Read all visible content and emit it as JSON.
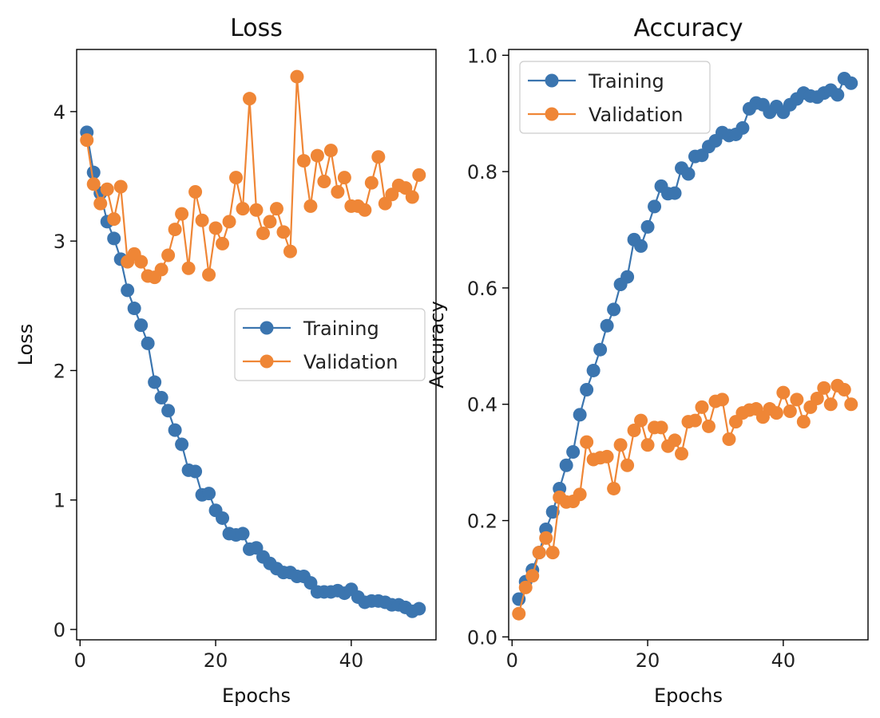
{
  "colors": {
    "training": "#3b75af",
    "validation": "#ef8636",
    "axis": "#000000",
    "legend_border": "#cccccc"
  },
  "chart_data": [
    {
      "type": "line",
      "title": "Loss",
      "xlabel": "Epochs",
      "ylabel": "Loss",
      "xlim": [
        -0.5,
        52.5
      ],
      "ylim": [
        -0.08,
        4.48
      ],
      "xticks": [
        0,
        20,
        40
      ],
      "yticks": [
        0,
        1,
        2,
        3,
        4
      ],
      "legend_position": "center-right",
      "grid": false,
      "x": [
        1,
        2,
        3,
        4,
        5,
        6,
        7,
        8,
        9,
        10,
        11,
        12,
        13,
        14,
        15,
        16,
        17,
        18,
        19,
        20,
        21,
        22,
        23,
        24,
        25,
        26,
        27,
        28,
        29,
        30,
        31,
        32,
        33,
        34,
        35,
        36,
        37,
        38,
        39,
        40,
        41,
        42,
        43,
        44,
        45,
        46,
        47,
        48,
        49,
        50
      ],
      "series": [
        {
          "name": "Training",
          "color_key": "training",
          "values": [
            3.84,
            3.53,
            3.37,
            3.15,
            3.02,
            2.86,
            2.62,
            2.48,
            2.35,
            2.21,
            1.91,
            1.79,
            1.69,
            1.54,
            1.43,
            1.23,
            1.22,
            1.04,
            1.05,
            0.92,
            0.86,
            0.74,
            0.73,
            0.74,
            0.62,
            0.63,
            0.56,
            0.51,
            0.47,
            0.44,
            0.44,
            0.41,
            0.41,
            0.36,
            0.29,
            0.29,
            0.29,
            0.3,
            0.28,
            0.31,
            0.25,
            0.21,
            0.22,
            0.22,
            0.21,
            0.19,
            0.19,
            0.17,
            0.14,
            0.16
          ]
        },
        {
          "name": "Validation",
          "color_key": "validation",
          "values": [
            3.78,
            3.44,
            3.29,
            3.4,
            3.17,
            3.42,
            2.84,
            2.9,
            2.84,
            2.73,
            2.72,
            2.78,
            2.89,
            3.09,
            3.21,
            2.79,
            3.38,
            3.16,
            2.74,
            3.1,
            2.98,
            3.15,
            3.49,
            3.25,
            4.1,
            3.24,
            3.06,
            3.15,
            3.25,
            3.07,
            2.92,
            4.27,
            3.62,
            3.27,
            3.66,
            3.46,
            3.7,
            3.38,
            3.49,
            3.27,
            3.27,
            3.24,
            3.45,
            3.65,
            3.29,
            3.36,
            3.43,
            3.41,
            3.34,
            3.51
          ]
        }
      ]
    },
    {
      "type": "line",
      "title": "Accuracy",
      "xlabel": "Epochs",
      "ylabel": "Accuracy",
      "xlim": [
        -0.5,
        52.5
      ],
      "ylim": [
        -0.005,
        1.01
      ],
      "xticks": [
        0,
        20,
        40
      ],
      "yticks": [
        0.0,
        0.2,
        0.4,
        0.6,
        0.8,
        1.0
      ],
      "ytick_labels": [
        "0.0",
        "0.2",
        "0.4",
        "0.6",
        "0.8",
        "1.0"
      ],
      "legend_position": "upper-left",
      "grid": false,
      "x": [
        1,
        2,
        3,
        4,
        5,
        6,
        7,
        8,
        9,
        10,
        11,
        12,
        13,
        14,
        15,
        16,
        17,
        18,
        19,
        20,
        21,
        22,
        23,
        24,
        25,
        26,
        27,
        28,
        29,
        30,
        31,
        32,
        33,
        34,
        35,
        36,
        37,
        38,
        39,
        40,
        41,
        42,
        43,
        44,
        45,
        46,
        47,
        48,
        49,
        50
      ],
      "series": [
        {
          "name": "Training",
          "color_key": "training",
          "values": [
            0.065,
            0.095,
            0.115,
            0.145,
            0.185,
            0.215,
            0.255,
            0.295,
            0.318,
            0.382,
            0.425,
            0.458,
            0.494,
            0.535,
            0.563,
            0.606,
            0.619,
            0.683,
            0.672,
            0.705,
            0.74,
            0.775,
            0.762,
            0.763,
            0.806,
            0.796,
            0.826,
            0.828,
            0.843,
            0.853,
            0.867,
            0.862,
            0.864,
            0.875,
            0.908,
            0.918,
            0.915,
            0.902,
            0.912,
            0.902,
            0.915,
            0.925,
            0.935,
            0.93,
            0.928,
            0.935,
            0.94,
            0.932,
            0.96,
            0.952
          ]
        },
        {
          "name": "Validation",
          "color_key": "validation",
          "values": [
            0.04,
            0.085,
            0.105,
            0.145,
            0.17,
            0.145,
            0.24,
            0.232,
            0.233,
            0.245,
            0.335,
            0.305,
            0.308,
            0.31,
            0.255,
            0.33,
            0.295,
            0.355,
            0.372,
            0.33,
            0.36,
            0.36,
            0.328,
            0.338,
            0.315,
            0.37,
            0.372,
            0.395,
            0.362,
            0.405,
            0.408,
            0.34,
            0.37,
            0.385,
            0.39,
            0.392,
            0.378,
            0.392,
            0.385,
            0.42,
            0.388,
            0.408,
            0.37,
            0.395,
            0.41,
            0.428,
            0.4,
            0.432,
            0.425,
            0.4
          ]
        }
      ]
    }
  ]
}
